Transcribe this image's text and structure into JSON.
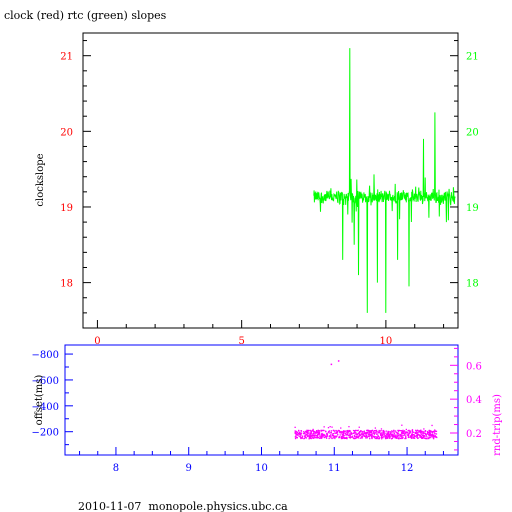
{
  "page": {
    "title": "clock (red) rtc (green) slopes",
    "footer": "2010-11-07  monopole.physics.ubc.ca"
  },
  "colors": {
    "clock": "#ff0000",
    "rtc": "#00ff00",
    "offset_axis": "#0000ff",
    "rtt": "#ff00ff",
    "frame": "#000000"
  },
  "chart_data": [
    {
      "type": "line",
      "title": "clock (red) rtc (green) slopes",
      "ylabel": "clockslope",
      "xlim": [
        -0.5,
        12.5
      ],
      "ylim": [
        17.4,
        21.3
      ],
      "x_ticks": [
        0,
        5,
        10
      ],
      "y_ticks_left": [
        18,
        19,
        20,
        21
      ],
      "y_ticks_right": [
        18,
        19,
        20,
        21
      ],
      "grid": false,
      "legend": "none",
      "series": [
        {
          "name": "rtc",
          "color": "#00ff00",
          "x_range": [
            7.5,
            12.4
          ],
          "baseline": 19.13,
          "noise": 0.07,
          "spikes": [
            {
              "x": 8.5,
              "y": 18.3
            },
            {
              "x": 8.75,
              "y": 21.1
            },
            {
              "x": 8.9,
              "y": 18.5
            },
            {
              "x": 9.05,
              "y": 18.1
            },
            {
              "x": 9.35,
              "y": 17.6
            },
            {
              "x": 9.7,
              "y": 18.0
            },
            {
              "x": 10.0,
              "y": 17.6
            },
            {
              "x": 10.4,
              "y": 18.3
            },
            {
              "x": 10.8,
              "y": 17.95
            },
            {
              "x": 11.3,
              "y": 19.9
            },
            {
              "x": 11.7,
              "y": 20.25
            },
            {
              "x": 12.1,
              "y": 18.8
            }
          ]
        }
      ]
    },
    {
      "type": "scatter",
      "ylabel_left": "offset(ms)",
      "ylabel_right": "rnd-trip(ms)",
      "xlim": [
        7.3,
        12.7
      ],
      "ylim_left": [
        -870,
        -20
      ],
      "ylim_right": [
        0.07,
        0.72
      ],
      "x_ticks": [
        8,
        9,
        10,
        11,
        12
      ],
      "y_ticks_left": [
        -800,
        -600,
        -400,
        -200
      ],
      "y_ticks_right": [
        0.2,
        0.4,
        0.6
      ],
      "grid": false,
      "legend": "none",
      "series": [
        {
          "name": "rnd-trip",
          "color": "#ff00ff",
          "x_range": [
            10.45,
            12.4
          ],
          "y_band": [
            0.17,
            0.22
          ],
          "outliers": [
            {
              "x": 10.95,
              "y": 0.61
            },
            {
              "x": 11.05,
              "y": 0.63
            }
          ]
        }
      ]
    }
  ]
}
